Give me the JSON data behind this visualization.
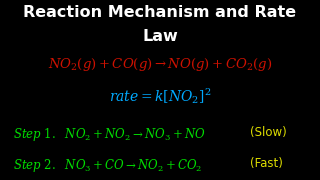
{
  "background_color": "#000000",
  "title_line1": "Reaction Mechanism and Rate",
  "title_line2": "Law",
  "title_color": "#ffffff",
  "title_fontsize": 11.5,
  "overall_reaction": "$NO_2(g) + CO(g) \\rightarrow NO(g) + CO_2(g)$",
  "overall_color": "#cc1100",
  "rate_law": "$rate = k[NO_2]^2$",
  "rate_color": "#00aaff",
  "step1_full": "$Step\\ 1.\\ \\ NO_2 + NO_2 \\rightarrow NO_3 + NO$",
  "step1_slow": "(Slow)",
  "step2_full": "$Step\\ 2.\\ \\ NO_3 + CO \\rightarrow NO_2 + CO_2$",
  "step2_fast": "(Fast)",
  "step_color": "#00dd00",
  "step_note_color": "#dddd00",
  "step_fontsize": 8.5,
  "rate_fontsize": 10,
  "overall_fontsize": 9.5
}
